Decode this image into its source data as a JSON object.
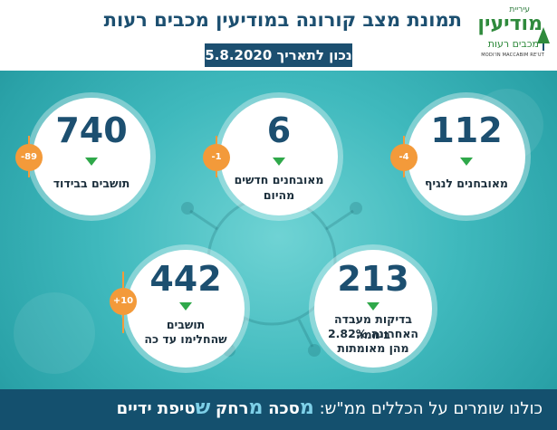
{
  "header": {
    "title": "תמונת מצב קורונה במודיעין מכבים רעות",
    "date_badge": "נכון לתאריך 5.8.2020",
    "logo": {
      "small": "עיריית",
      "main": "מודיעין",
      "sub": "מכבים רעות",
      "en": "MODI'IN MACCABIM RE'UT"
    }
  },
  "stats": [
    {
      "value": "112",
      "label": "מאובחנים לנגיף",
      "change": "-4"
    },
    {
      "value": "6",
      "label": "מאובחנים חדשים מהיום",
      "change": "-1"
    },
    {
      "value": "740",
      "label": "תושבים בבידוד",
      "change": "-89"
    },
    {
      "value": "213",
      "label_line1": "בדיקות מעבדה ביממה",
      "label_line2": "האחרונה 2.82%",
      "label_line3": "מהן מאומתות"
    },
    {
      "value": "442",
      "label_line1": "תושבים",
      "label_line2": "שהחלימו עד כה",
      "change": "+10"
    }
  ],
  "footer": {
    "prefix": "כולנו שומרים על הכללים ממ\"ש:",
    "m1": "מ",
    "w1": "סכה",
    "m2": "מ",
    "w2": "רחק",
    "m3": "ש",
    "w3": "טיפת ידיים"
  },
  "colors": {
    "primary": "#1c4f70",
    "accent": "#f39a3a",
    "arrow": "#2fa84a",
    "footer": "#14506e"
  }
}
